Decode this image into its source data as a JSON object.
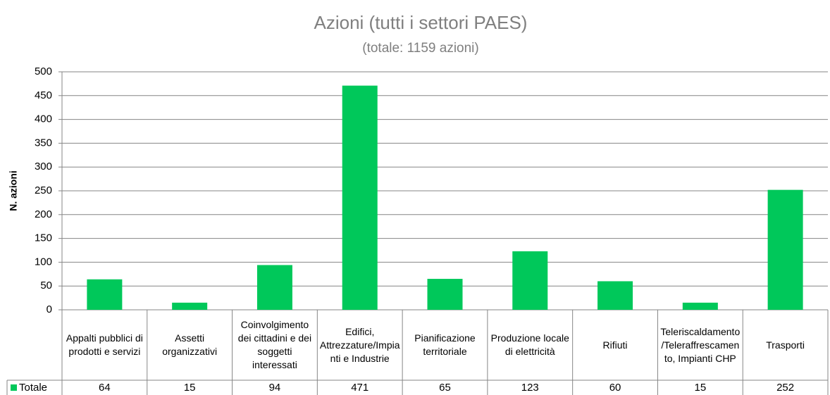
{
  "chart_data": {
    "type": "bar",
    "title": "Azioni (tutti i settori PAES)",
    "subtitle": "(totale: 1159 azioni)",
    "y_label": "N. azioni",
    "categories": [
      "Appalti pubblici di prodotti e servizi",
      "Assetti organizzativi",
      "Coinvolgimento dei cittadini e dei soggetti interessati",
      "Edifici, Attrezzature/Impianti e Industrie",
      "Pianificazione territoriale",
      "Produzione locale di elettricità",
      "Rifiuti",
      "Teleriscaldamento/Teleraffrescamento, Impianti CHP",
      "Trasporti"
    ],
    "series": [
      {
        "name": "Totale",
        "color": "#00c85a",
        "values": [
          64,
          15,
          94,
          471,
          65,
          123,
          60,
          15,
          252
        ]
      }
    ],
    "ylim": [
      0,
      500
    ],
    "yticks": [
      0,
      50,
      100,
      150,
      200,
      250,
      300,
      350,
      400,
      450,
      500
    ],
    "grid": true
  }
}
